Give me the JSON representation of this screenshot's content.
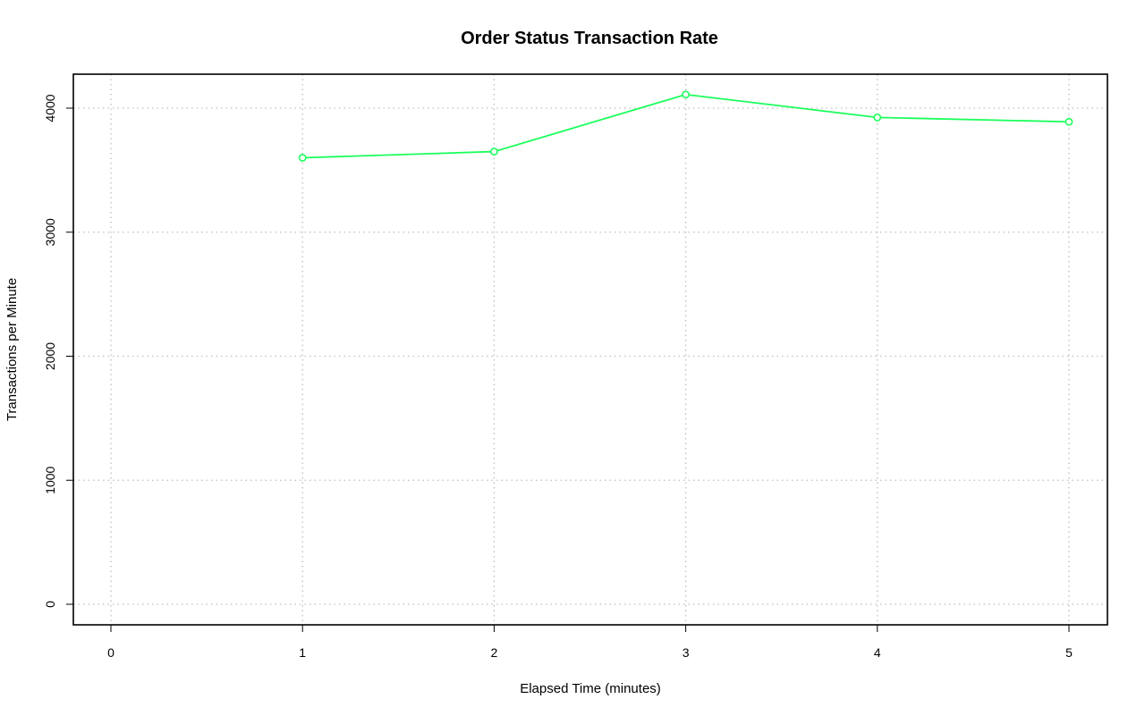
{
  "chart_data": {
    "type": "line",
    "title": "Order Status Transaction Rate",
    "xlabel": "Elapsed Time (minutes)",
    "ylabel": "Transactions per Minute",
    "xlim": [
      0,
      5
    ],
    "ylim": [
      0,
      4100
    ],
    "x_ticks": [
      0,
      1,
      2,
      3,
      4,
      5
    ],
    "y_ticks": [
      0,
      1000,
      2000,
      3000,
      4000
    ],
    "grid": true,
    "series": [
      {
        "color": "#1aff5a",
        "marker": "open-circle",
        "x": [
          1,
          2,
          3,
          4,
          5
        ],
        "y": [
          3600,
          3650,
          4110,
          3925,
          3890
        ]
      }
    ]
  }
}
